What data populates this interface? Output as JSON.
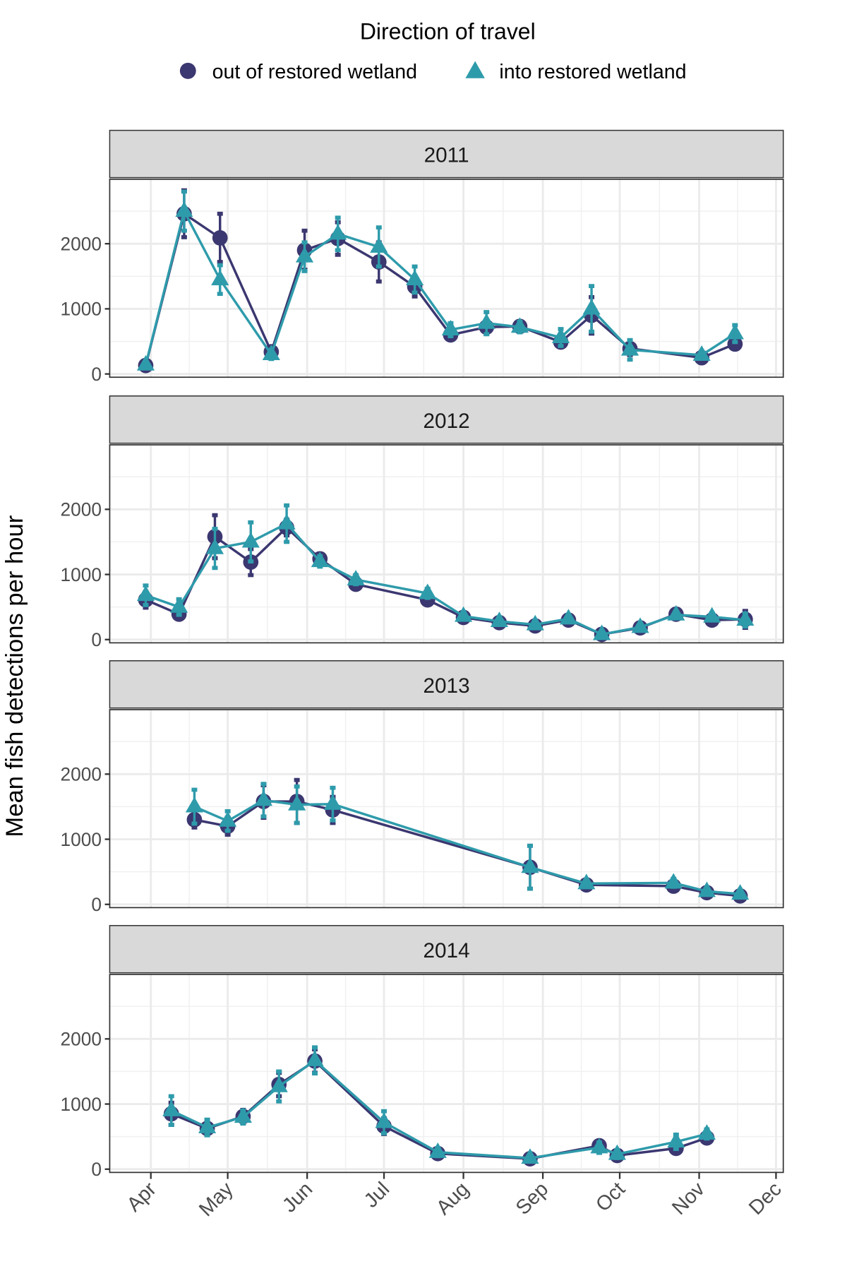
{
  "chart_data": {
    "type": "line",
    "legend": {
      "title": "Direction of travel",
      "position": "top",
      "entries": [
        {
          "name": "out of restored wetland",
          "marker": "circle",
          "color": "#3b3770"
        },
        {
          "name": "into restored wetland",
          "marker": "triangle",
          "color": "#2e9bab"
        }
      ]
    },
    "ylabel": "Mean fish detections per hour",
    "xlabel": "",
    "y_ticks": [
      0,
      1000,
      2000
    ],
    "ylim": [
      -50,
      2990
    ],
    "x_tick_labels": [
      "Apr",
      "May",
      "Jun",
      "Jul",
      "Aug",
      "Sep",
      "Oct",
      "Nov",
      "Dec"
    ],
    "grid": true,
    "facets": [
      {
        "label": "2011",
        "dates": [
          "2011-03-30",
          "2011-04-14",
          "2011-04-28",
          "2011-05-18",
          "2011-05-31",
          "2011-06-13",
          "2011-06-29",
          "2011-07-13",
          "2011-07-27",
          "2011-08-10",
          "2011-08-23",
          "2011-09-08",
          "2011-09-20",
          "2011-10-05",
          "2011-11-02",
          "2011-11-15"
        ],
        "series": [
          {
            "name": "out of restored wetland",
            "values": [
              130,
              2460,
              2090,
              340,
              1900,
              2080,
              1720,
              1340,
              600,
              720,
              730,
              490,
              900,
              390,
              250,
              460
            ],
            "error": [
              30,
              360,
              370,
              60,
              300,
              250,
              300,
              150,
              60,
              100,
              80,
              80,
              280,
              100,
              40,
              80
            ]
          },
          {
            "name": "into restored wetland",
            "values": [
              140,
              2500,
              1450,
              300,
              1800,
              2150,
              1950,
              1450,
              680,
              780,
              720,
              560,
              1000,
              370,
              290,
              620
            ],
            "error": [
              40,
              300,
              220,
              70,
              220,
              250,
              300,
              200,
              100,
              170,
              80,
              130,
              350,
              150,
              50,
              130
            ]
          }
        ]
      },
      {
        "label": "2012",
        "dates": [
          "2012-03-30",
          "2012-04-12",
          "2012-04-26",
          "2012-05-10",
          "2012-05-24",
          "2012-06-06",
          "2012-06-20",
          "2012-07-18",
          "2012-08-01",
          "2012-08-15",
          "2012-08-29",
          "2012-09-11",
          "2012-09-24",
          "2012-10-09",
          "2012-10-23",
          "2012-11-06",
          "2012-11-19"
        ],
        "series": [
          {
            "name": "out of restored wetland",
            "values": [
              610,
              390,
              1580,
              1190,
              1720,
              1240,
              850,
              610,
              340,
              260,
              210,
              300,
              80,
              180,
              390,
              300,
              310
            ],
            "error": [
              120,
              80,
              330,
              200,
              120,
              80,
              60,
              60,
              50,
              40,
              40,
              40,
              30,
              40,
              50,
              50,
              130
            ]
          },
          {
            "name": "into restored wetland",
            "values": [
              680,
              500,
              1400,
              1500,
              1780,
              1200,
              920,
              710,
              360,
              280,
              230,
              320,
              80,
              190,
              380,
              350,
              300
            ],
            "error": [
              150,
              120,
              300,
              300,
              280,
              80,
              70,
              70,
              50,
              50,
              50,
              50,
              30,
              40,
              50,
              50,
              100
            ]
          }
        ]
      },
      {
        "label": "2013",
        "dates": [
          "2013-04-18",
          "2013-05-01",
          "2013-05-15",
          "2013-05-28",
          "2013-06-11",
          "2013-08-27",
          "2013-09-18",
          "2013-10-22",
          "2013-11-04",
          "2013-11-17"
        ],
        "series": [
          {
            "name": "out of restored wetland",
            "values": [
              1300,
              1200,
              1580,
              1580,
              1450,
              570,
              300,
              280,
              180,
              130
            ],
            "error": [
              120,
              130,
              250,
              330,
              200,
              330,
              40,
              40,
              40,
              30
            ]
          },
          {
            "name": "into restored wetland",
            "values": [
              1500,
              1280,
              1600,
              1530,
              1540,
              570,
              320,
              330,
              200,
              160
            ],
            "error": [
              260,
              150,
              250,
              280,
              250,
              330,
              50,
              60,
              40,
              40
            ]
          }
        ]
      },
      {
        "label": "2014",
        "dates": [
          "2014-04-09",
          "2014-04-23",
          "2014-05-07",
          "2014-05-21",
          "2014-06-04",
          "2014-07-01",
          "2014-07-22",
          "2014-08-27",
          "2014-09-23",
          "2014-09-30",
          "2014-10-23",
          "2014-11-04"
        ],
        "series": [
          {
            "name": "out of restored wetland",
            "values": [
              850,
              625,
              810,
              1300,
              1660,
              660,
              240,
              160,
              360,
              210,
              320,
              480
            ],
            "error": [
              170,
              100,
              100,
              180,
              180,
              120,
              50,
              40,
              60,
              50,
              60,
              60
            ]
          },
          {
            "name": "into restored wetland",
            "values": [
              900,
              640,
              800,
              1270,
              1670,
              720,
              260,
              170,
              330,
              230,
              420,
              540
            ],
            "error": [
              220,
              120,
              100,
              230,
              200,
              170,
              60,
              50,
              80,
              60,
              110,
              70
            ]
          }
        ]
      }
    ]
  }
}
